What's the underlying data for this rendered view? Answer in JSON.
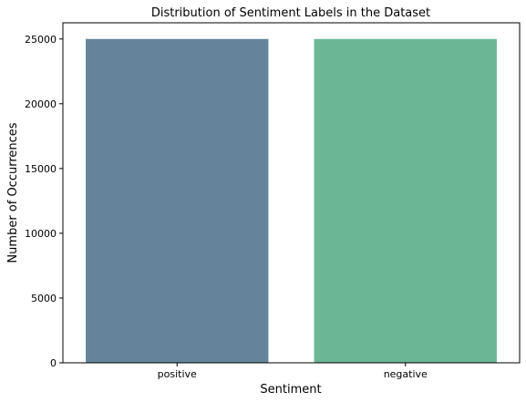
{
  "chart_data": {
    "type": "bar",
    "title": "Distribution of Sentiment Labels in the Dataset",
    "xlabel": "Sentiment",
    "ylabel": "Number of Occurrences",
    "categories": [
      "positive",
      "negative"
    ],
    "values": [
      25000,
      25000
    ],
    "colors": [
      "#65849b",
      "#6bb795"
    ],
    "ylim": [
      0,
      26250
    ],
    "yticks": [
      0,
      5000,
      10000,
      15000,
      20000,
      25000
    ],
    "ytick_labels": [
      "0",
      "5000",
      "10000",
      "15000",
      "20000",
      "25000"
    ],
    "grid": false,
    "legend": "none"
  }
}
